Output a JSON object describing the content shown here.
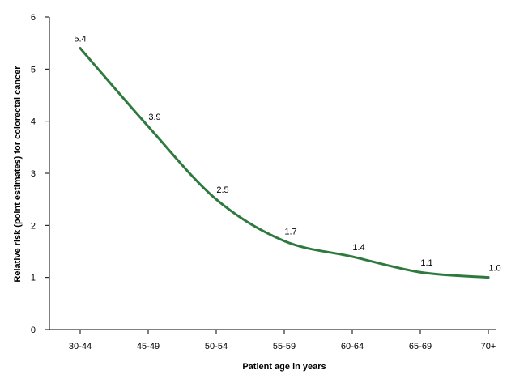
{
  "chart_data": {
    "type": "line",
    "title": "",
    "xlabel": "Patient age in years",
    "ylabel": "Relative risk (point estimates) for colorectal cancer",
    "categories": [
      "30-44",
      "45-49",
      "50-54",
      "55-59",
      "60-64",
      "65-69",
      "70+"
    ],
    "series": [
      {
        "values": [
          5.4,
          3.9,
          2.5,
          1.7,
          1.4,
          1.1,
          1.0
        ],
        "labels": [
          "5.4",
          "3.9",
          "2.5",
          "1.7",
          "1.4",
          "1.1",
          "1.0"
        ]
      }
    ],
    "ylim": [
      0,
      6
    ],
    "yticks": [
      "0",
      "1",
      "2",
      "3",
      "4",
      "5",
      "6"
    ],
    "grid": false,
    "legend": "none",
    "line_color": "#2e7a3e",
    "axis_color": "#000000"
  }
}
